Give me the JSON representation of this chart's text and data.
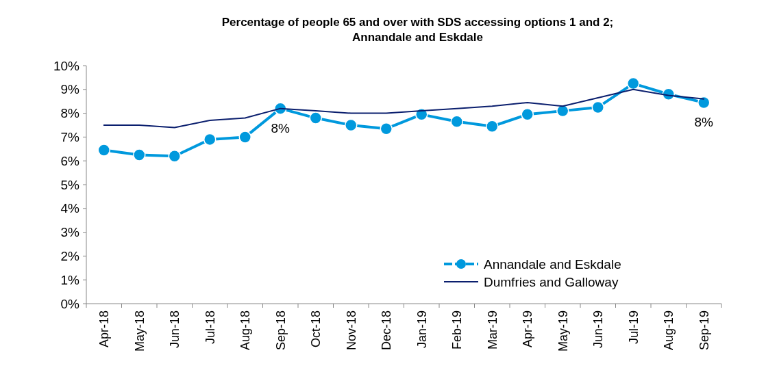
{
  "chart_data": {
    "type": "line",
    "title": "Percentage of people 65 and over with SDS accessing options 1 and 2;\nAnnandale and Eskdale",
    "categories": [
      "Apr-18",
      "May-18",
      "Jun-18",
      "Jul-18",
      "Aug-18",
      "Sep-18",
      "Oct-18",
      "Nov-18",
      "Dec-18",
      "Jan-19",
      "Feb-19",
      "Mar-19",
      "Apr-19",
      "May-19",
      "Jun-19",
      "Jul-19",
      "Aug-19",
      "Sep-19"
    ],
    "series": [
      {
        "name": "Annandale and Eskdale",
        "color": "#0099dd",
        "marker": "circle",
        "values": [
          6.45,
          6.25,
          6.2,
          6.9,
          7.0,
          8.2,
          7.8,
          7.5,
          7.35,
          7.95,
          7.65,
          7.45,
          7.95,
          8.1,
          8.25,
          9.25,
          8.8,
          8.45
        ],
        "value_labels": [
          null,
          null,
          null,
          null,
          null,
          "8%",
          null,
          null,
          null,
          null,
          null,
          null,
          null,
          null,
          null,
          null,
          null,
          "8%"
        ]
      },
      {
        "name": "Dumfries and Galloway",
        "color": "#0b1f6e",
        "marker": "none",
        "values": [
          7.5,
          7.5,
          7.4,
          7.7,
          7.8,
          8.2,
          8.1,
          8.0,
          8.0,
          8.1,
          8.2,
          8.3,
          8.45,
          8.3,
          8.65,
          9.0,
          8.75,
          8.6
        ]
      }
    ],
    "ylim": [
      0,
      10
    ],
    "yticks": [
      {
        "value": 0,
        "label": "0%"
      },
      {
        "value": 1,
        "label": "1%"
      },
      {
        "value": 2,
        "label": "2%"
      },
      {
        "value": 3,
        "label": "3%"
      },
      {
        "value": 4,
        "label": "4%"
      },
      {
        "value": 5,
        "label": "5%"
      },
      {
        "value": 6,
        "label": "6%"
      },
      {
        "value": 7,
        "label": "7%"
      },
      {
        "value": 8,
        "label": "8%"
      },
      {
        "value": 9,
        "label": "9%"
      },
      {
        "value": 10,
        "label": "10%"
      }
    ],
    "grid": false,
    "legend": "bottom right"
  }
}
